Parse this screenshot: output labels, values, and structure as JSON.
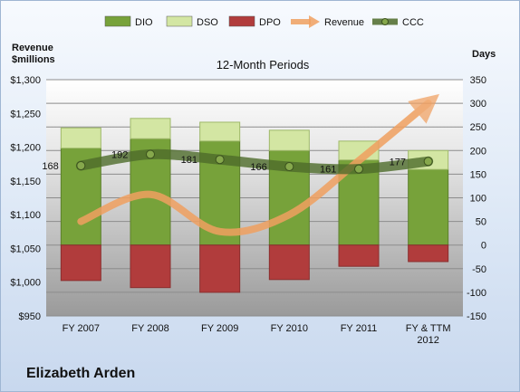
{
  "chart_data": {
    "type": "bar",
    "title": "12-Month Periods",
    "subtitle": "Elizabeth Arden",
    "ylabel_left": "Revenue\n$millions",
    "ylabel_left_lines": [
      "Revenue",
      "$millions"
    ],
    "ylabel_right": "Days",
    "categories": [
      "FY 2007",
      "FY 2008",
      "FY 2009",
      "FY 2010",
      "FY 2011",
      "FY & TTM 2012"
    ],
    "category_lines": [
      [
        "FY 2007"
      ],
      [
        "FY 2008"
      ],
      [
        "FY 2009"
      ],
      [
        "FY 2010"
      ],
      [
        "FY 2011"
      ],
      [
        "FY & TTM",
        "2012"
      ]
    ],
    "ylim_left": [
      950,
      1300
    ],
    "yticks_left": [
      950,
      1000,
      1050,
      1100,
      1150,
      1200,
      1250,
      1300
    ],
    "ytick_labels_left": [
      "$950",
      "$1,000",
      "$1,050",
      "$1,100",
      "$1,150",
      "$1,200",
      "$1,250",
      "$1,300"
    ],
    "ylim_right": [
      -150,
      350
    ],
    "yticks_right": [
      -150,
      -100,
      -50,
      0,
      50,
      100,
      150,
      200,
      250,
      300,
      350
    ],
    "ytick_labels_right": [
      "-150",
      "-100",
      "-50",
      "0",
      "50",
      "100",
      "150",
      "200",
      "250",
      "300",
      "350"
    ],
    "grid": true,
    "legend_position": "top",
    "series": [
      {
        "name": "DIO",
        "type": "stacked-bar",
        "axis": "right",
        "color": "#77a23a",
        "values": [
          205,
          225,
          220,
          200,
          180,
          160
        ]
      },
      {
        "name": "DSO",
        "type": "stacked-bar",
        "axis": "right",
        "color": "#d3e6a3",
        "values": [
          43,
          43,
          40,
          43,
          40,
          40
        ]
      },
      {
        "name": "DPO",
        "type": "stacked-bar",
        "axis": "right",
        "color": "#b13c3c",
        "values": [
          -75,
          -90,
          -100,
          -73,
          -45,
          -35
        ]
      },
      {
        "name": "Revenue",
        "type": "line",
        "axis": "left",
        "color": "#f0a060",
        "values": [
          1090,
          1130,
          1075,
          1100,
          1180,
          1265
        ]
      },
      {
        "name": "CCC",
        "type": "line",
        "axis": "right",
        "color": "#4e6b2a",
        "values": [
          168,
          192,
          181,
          166,
          161,
          177
        ],
        "labels": [
          "168",
          "192",
          "181",
          "166",
          "161",
          "177"
        ]
      }
    ]
  }
}
